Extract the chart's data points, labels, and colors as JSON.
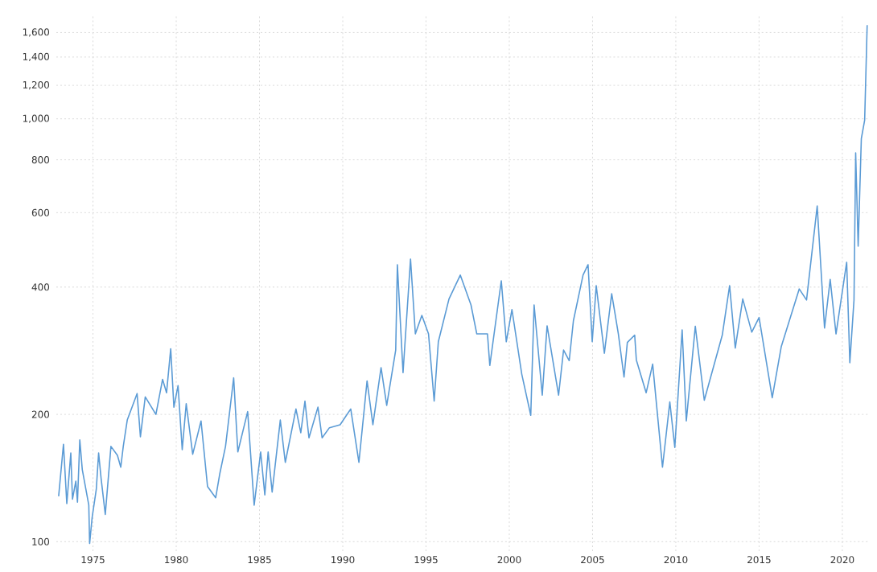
{
  "chart_data": {
    "type": "line",
    "color": "#5b9bd5",
    "log": "y",
    "grid": true,
    "marker": "none",
    "line_style": "solid",
    "xlim": [
      1972.8,
      2021.6
    ],
    "ylim": [
      95,
      1750
    ],
    "xticks": [
      1975,
      1980,
      1985,
      1990,
      1995,
      2000,
      2005,
      2010,
      2015,
      2020
    ],
    "yticks": [
      {
        "value": 100,
        "label": "100"
      },
      {
        "value": 200,
        "label": "200"
      },
      {
        "value": 400,
        "label": "400"
      },
      {
        "value": 600,
        "label": "600"
      },
      {
        "value": 800,
        "label": "800"
      },
      {
        "value": 1000,
        "label": "1,000"
      },
      {
        "value": 1200,
        "label": "1,200"
      },
      {
        "value": 1400,
        "label": "1,400"
      },
      {
        "value": 1600,
        "label": "1,600"
      }
    ],
    "x": [
      1972.94,
      1973.23,
      1973.43,
      1973.67,
      1973.77,
      1973.97,
      1974.07,
      1974.21,
      1974.36,
      1974.75,
      1974.8,
      1974.95,
      1975.2,
      1975.34,
      1975.49,
      1975.74,
      1976.08,
      1976.47,
      1976.67,
      1976.82,
      1977.06,
      1977.65,
      1977.85,
      1978.14,
      1978.78,
      1979.18,
      1979.42,
      1979.67,
      1979.86,
      1980.11,
      1980.36,
      1980.6,
      1980.99,
      1981.49,
      1981.88,
      1982.37,
      1982.62,
      1982.96,
      1983.45,
      1983.7,
      1984.29,
      1984.68,
      1985.07,
      1985.32,
      1985.52,
      1985.76,
      1986.25,
      1986.55,
      1987.19,
      1987.48,
      1987.73,
      1987.97,
      1988.51,
      1988.76,
      1989.2,
      1989.84,
      1990.48,
      1990.97,
      1991.46,
      1991.81,
      1992.3,
      1992.64,
      1993.18,
      1993.28,
      1993.62,
      1994.07,
      1994.36,
      1994.75,
      1995.15,
      1995.49,
      1995.74,
      1996.38,
      1997.06,
      1997.7,
      1998.05,
      1998.69,
      1998.83,
      1999.52,
      1999.82,
      2000.16,
      2000.75,
      2001.29,
      2001.49,
      2001.98,
      2002.27,
      2002.96,
      2003.26,
      2003.6,
      2003.85,
      2004.43,
      2004.73,
      2004.98,
      2005.22,
      2005.71,
      2006.15,
      2006.55,
      2006.89,
      2007.09,
      2007.53,
      2007.63,
      2008.22,
      2008.61,
      2009.2,
      2009.64,
      2009.94,
      2010.38,
      2010.63,
      2011.17,
      2011.71,
      2012.79,
      2013.23,
      2013.57,
      2014.02,
      2014.56,
      2015.0,
      2015.79,
      2016.33,
      2017.41,
      2017.85,
      2018.49,
      2018.93,
      2019.27,
      2019.62,
      2020.26,
      2020.45,
      2020.7,
      2020.8,
      2020.95,
      2021.14,
      2021.34,
      2021.49
    ],
    "values": [
      128,
      170,
      123,
      162,
      126,
      139,
      124,
      174,
      148,
      122,
      99,
      114,
      133,
      162,
      141,
      116,
      168,
      160,
      150,
      168,
      194,
      224,
      177,
      220,
      200,
      242,
      225,
      286,
      208,
      234,
      165,
      212,
      161,
      193,
      135,
      127,
      145,
      168,
      244,
      163,
      203,
      122,
      163,
      129,
      163,
      131,
      194,
      154,
      206,
      181,
      215,
      176,
      208,
      176,
      186,
      189,
      206,
      154,
      240,
      189,
      258,
      210,
      284,
      452,
      251,
      466,
      310,
      343,
      310,
      215,
      297,
      375,
      427,
      363,
      310,
      310,
      261,
      414,
      297,
      354,
      249,
      199,
      363,
      222,
      324,
      222,
      284,
      268,
      333,
      427,
      452,
      297,
      403,
      279,
      386,
      310,
      245,
      296,
      308,
      269,
      225,
      263,
      150,
      214,
      167,
      317,
      193,
      323,
      216,
      308,
      403,
      287,
      375,
      313,
      339,
      219,
      289,
      396,
      373,
      622,
      320,
      417,
      310,
      458,
      265,
      373,
      831,
      500,
      898,
      993,
      1665
    ]
  }
}
